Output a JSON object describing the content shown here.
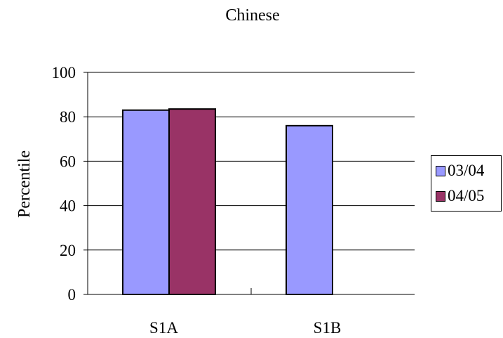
{
  "chart_data": {
    "type": "bar",
    "title": "Chinese",
    "xlabel": "",
    "ylabel": "Percentile",
    "categories": [
      "S1A",
      "S1B"
    ],
    "series": [
      {
        "name": "03/04",
        "color": "#9999FF",
        "values": [
          83,
          76
        ]
      },
      {
        "name": "04/05",
        "color": "#993366",
        "values": [
          83.5,
          null
        ]
      }
    ],
    "ylim": [
      0,
      100
    ],
    "yticks": [
      0,
      20,
      40,
      60,
      80,
      100
    ],
    "grid": true,
    "legend": "right"
  }
}
